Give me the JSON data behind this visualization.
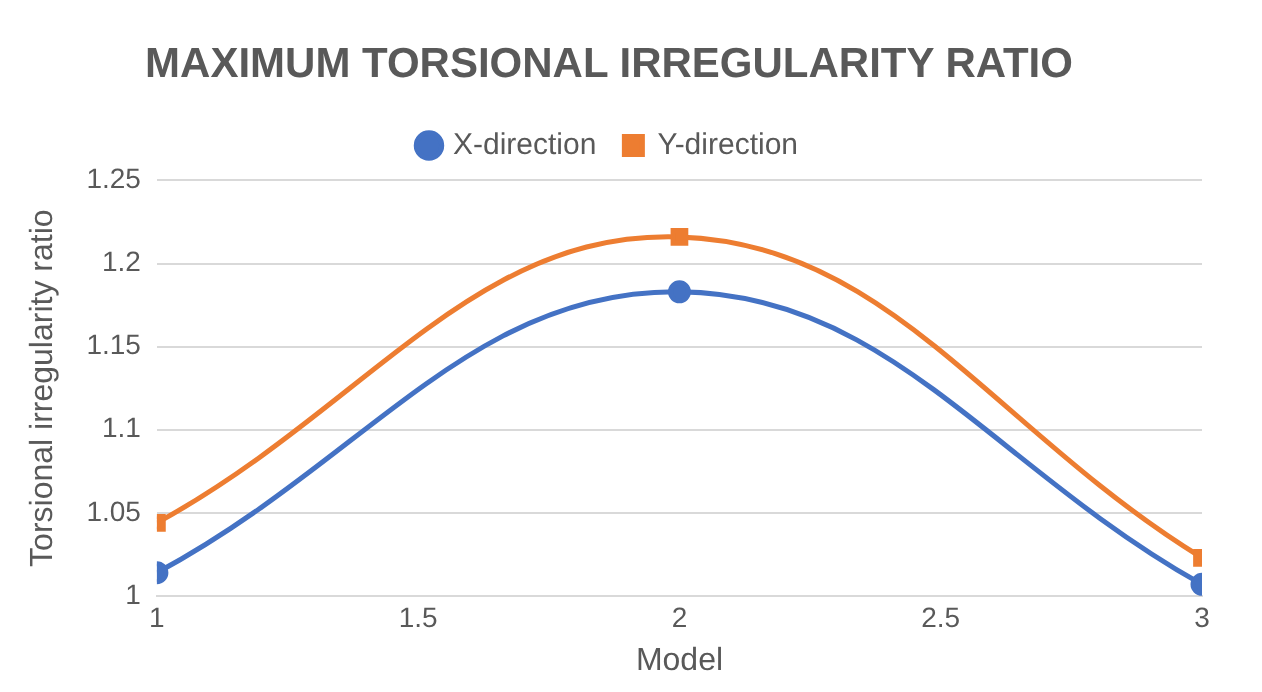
{
  "chart_data": {
    "type": "line",
    "title": "MAXIMUM TORSIONAL IRREGULARITY RATIO",
    "xlabel": "Model",
    "ylabel": "Torsional irregularity ratio",
    "x": [
      1,
      2,
      3
    ],
    "xlim": [
      1,
      3
    ],
    "xticks": [
      1,
      1.5,
      2,
      2.5,
      3
    ],
    "ylim": [
      1,
      1.25
    ],
    "yticks": [
      1,
      1.05,
      1.1,
      1.15,
      1.2,
      1.25
    ],
    "series": [
      {
        "name": "X-direction",
        "color": "#4472c4",
        "values": [
          1.014,
          1.183,
          1.007
        ],
        "marker": "circle"
      },
      {
        "name": "Y-direction",
        "color": "#ed7d31",
        "values": [
          1.044,
          1.216,
          1.023
        ],
        "marker": "square"
      }
    ],
    "grid": "y",
    "legend": "top"
  }
}
